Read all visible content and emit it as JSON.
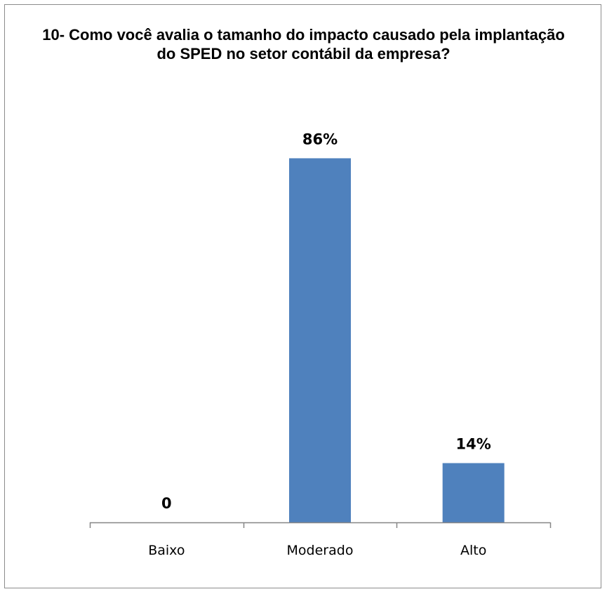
{
  "chart_data": {
    "type": "bar",
    "title": "10- Como você avalia o tamanho do impacto causado pela implantação do SPED no setor contábil da empresa?",
    "categories": [
      "Baixo",
      "Moderado",
      "Alto"
    ],
    "values": [
      0,
      86,
      14
    ],
    "data_labels": [
      "0",
      "86%",
      "14%"
    ],
    "xlabel": "",
    "ylabel": "",
    "ylim": [
      0,
      100
    ],
    "grid": false,
    "legend": "none",
    "bar_color": "#4f81bd",
    "axis_color": "#868686"
  }
}
